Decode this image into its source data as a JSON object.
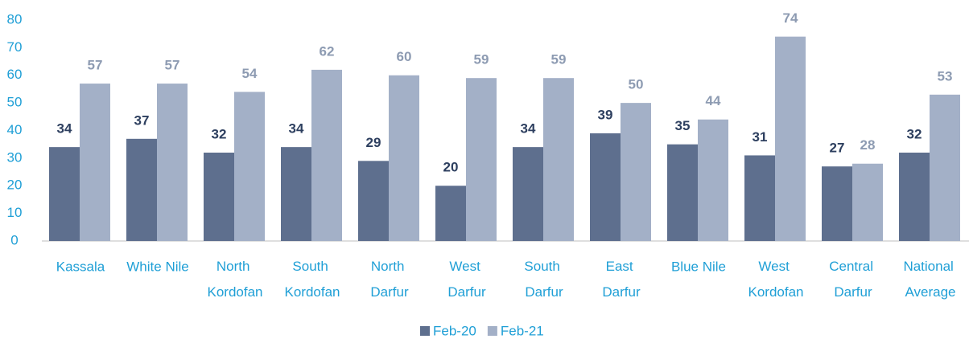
{
  "chart_data": {
    "type": "bar",
    "categories": [
      "Kassala",
      "White Nile",
      "North Kordofan",
      "South Kordofan",
      "North Darfur",
      "West Darfur",
      "South Darfur",
      "East Darfur",
      "Blue Nile",
      "West Kordofan",
      "Central Darfur",
      "National Average"
    ],
    "series": [
      {
        "name": "Feb-20",
        "color": "#5e6f8e",
        "values": [
          34,
          37,
          32,
          34,
          29,
          20,
          34,
          39,
          35,
          31,
          27,
          32
        ]
      },
      {
        "name": "Feb-21",
        "color": "#a3b0c7",
        "values": [
          57,
          57,
          54,
          62,
          60,
          59,
          59,
          50,
          44,
          74,
          28,
          53
        ]
      }
    ],
    "ylim": [
      0,
      80
    ],
    "yticks": [
      0,
      10,
      20,
      30,
      40,
      50,
      60,
      70,
      80
    ],
    "grid": false,
    "legend": "bottom"
  }
}
